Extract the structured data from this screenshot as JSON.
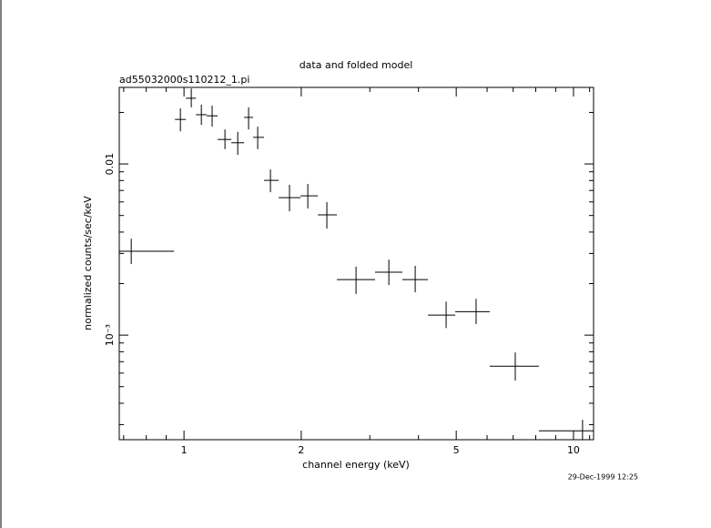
{
  "chart_data": {
    "type": "errorbar",
    "title": "data and folded model",
    "subtitle": "ad55032000s110212_1.pi",
    "xlabel": "channel energy (keV)",
    "ylabel": "normalized counts/sec/keV",
    "annotation": "29-Dec-1999 12:25",
    "xscale": "log",
    "yscale": "log",
    "xlim": [
      0.682,
      11.26
    ],
    "ylim": [
      0.000245,
      0.028
    ],
    "xticks": [
      1,
      2,
      5,
      10
    ],
    "xminorticks": [
      0.7,
      0.8,
      0.9,
      3,
      4,
      6,
      7,
      8,
      9,
      11
    ],
    "yticks": [
      0.01,
      {
        "value": 0.001,
        "label": "10⁻³"
      }
    ],
    "yminorticks": [
      0.0003,
      0.0004,
      0.0005,
      0.0006,
      0.0007,
      0.0008,
      0.0009,
      0.002,
      0.003,
      0.004,
      0.005,
      0.006,
      0.007,
      0.008,
      0.009,
      0.02
    ],
    "series": [
      {
        "color": "#000000",
        "x": [
          0.732,
          0.979,
          1.044,
          1.108,
          1.181,
          1.274,
          1.374,
          1.465,
          1.546,
          1.667,
          1.866,
          2.079,
          2.327,
          2.765,
          3.357,
          3.923,
          4.71,
          5.623,
          7.088,
          10.55
        ],
        "x_lo": [
          0.682,
          0.948,
          1.011,
          1.073,
          1.144,
          1.22,
          1.323,
          1.427,
          1.505,
          1.605,
          1.75,
          1.991,
          2.206,
          2.469,
          3.095,
          3.637,
          4.229,
          4.97,
          6.095,
          8.151
        ],
        "x_hi": [
          0.943,
          1.011,
          1.073,
          1.144,
          1.22,
          1.323,
          1.427,
          1.505,
          1.605,
          1.75,
          1.991,
          2.206,
          2.469,
          3.095,
          3.637,
          4.229,
          4.97,
          6.095,
          8.151,
          11.26
        ],
        "values": [
          0.00309,
          0.0182,
          0.0242,
          0.0194,
          0.0191,
          0.0139,
          0.0133,
          0.0187,
          0.0143,
          0.00802,
          0.00635,
          0.00651,
          0.00504,
          0.00211,
          0.00233,
          0.00211,
          0.00131,
          0.00137,
          0.000659,
          0.000276
        ],
        "y_lo": [
          0.0026,
          0.0155,
          0.0214,
          0.0169,
          0.0165,
          0.0122,
          0.0113,
          0.0159,
          0.0122,
          0.00684,
          0.00529,
          0.00549,
          0.00419,
          0.00174,
          0.00196,
          0.00178,
          0.0011,
          0.00116,
          0.000542,
          0.000245
        ],
        "y_hi": [
          0.00366,
          0.0211,
          0.0276,
          0.0222,
          0.0219,
          0.0159,
          0.0154,
          0.0214,
          0.0165,
          0.00929,
          0.00755,
          0.00764,
          0.00598,
          0.00251,
          0.00276,
          0.00254,
          0.00157,
          0.00163,
          0.000792,
          0.00032
        ]
      }
    ]
  }
}
